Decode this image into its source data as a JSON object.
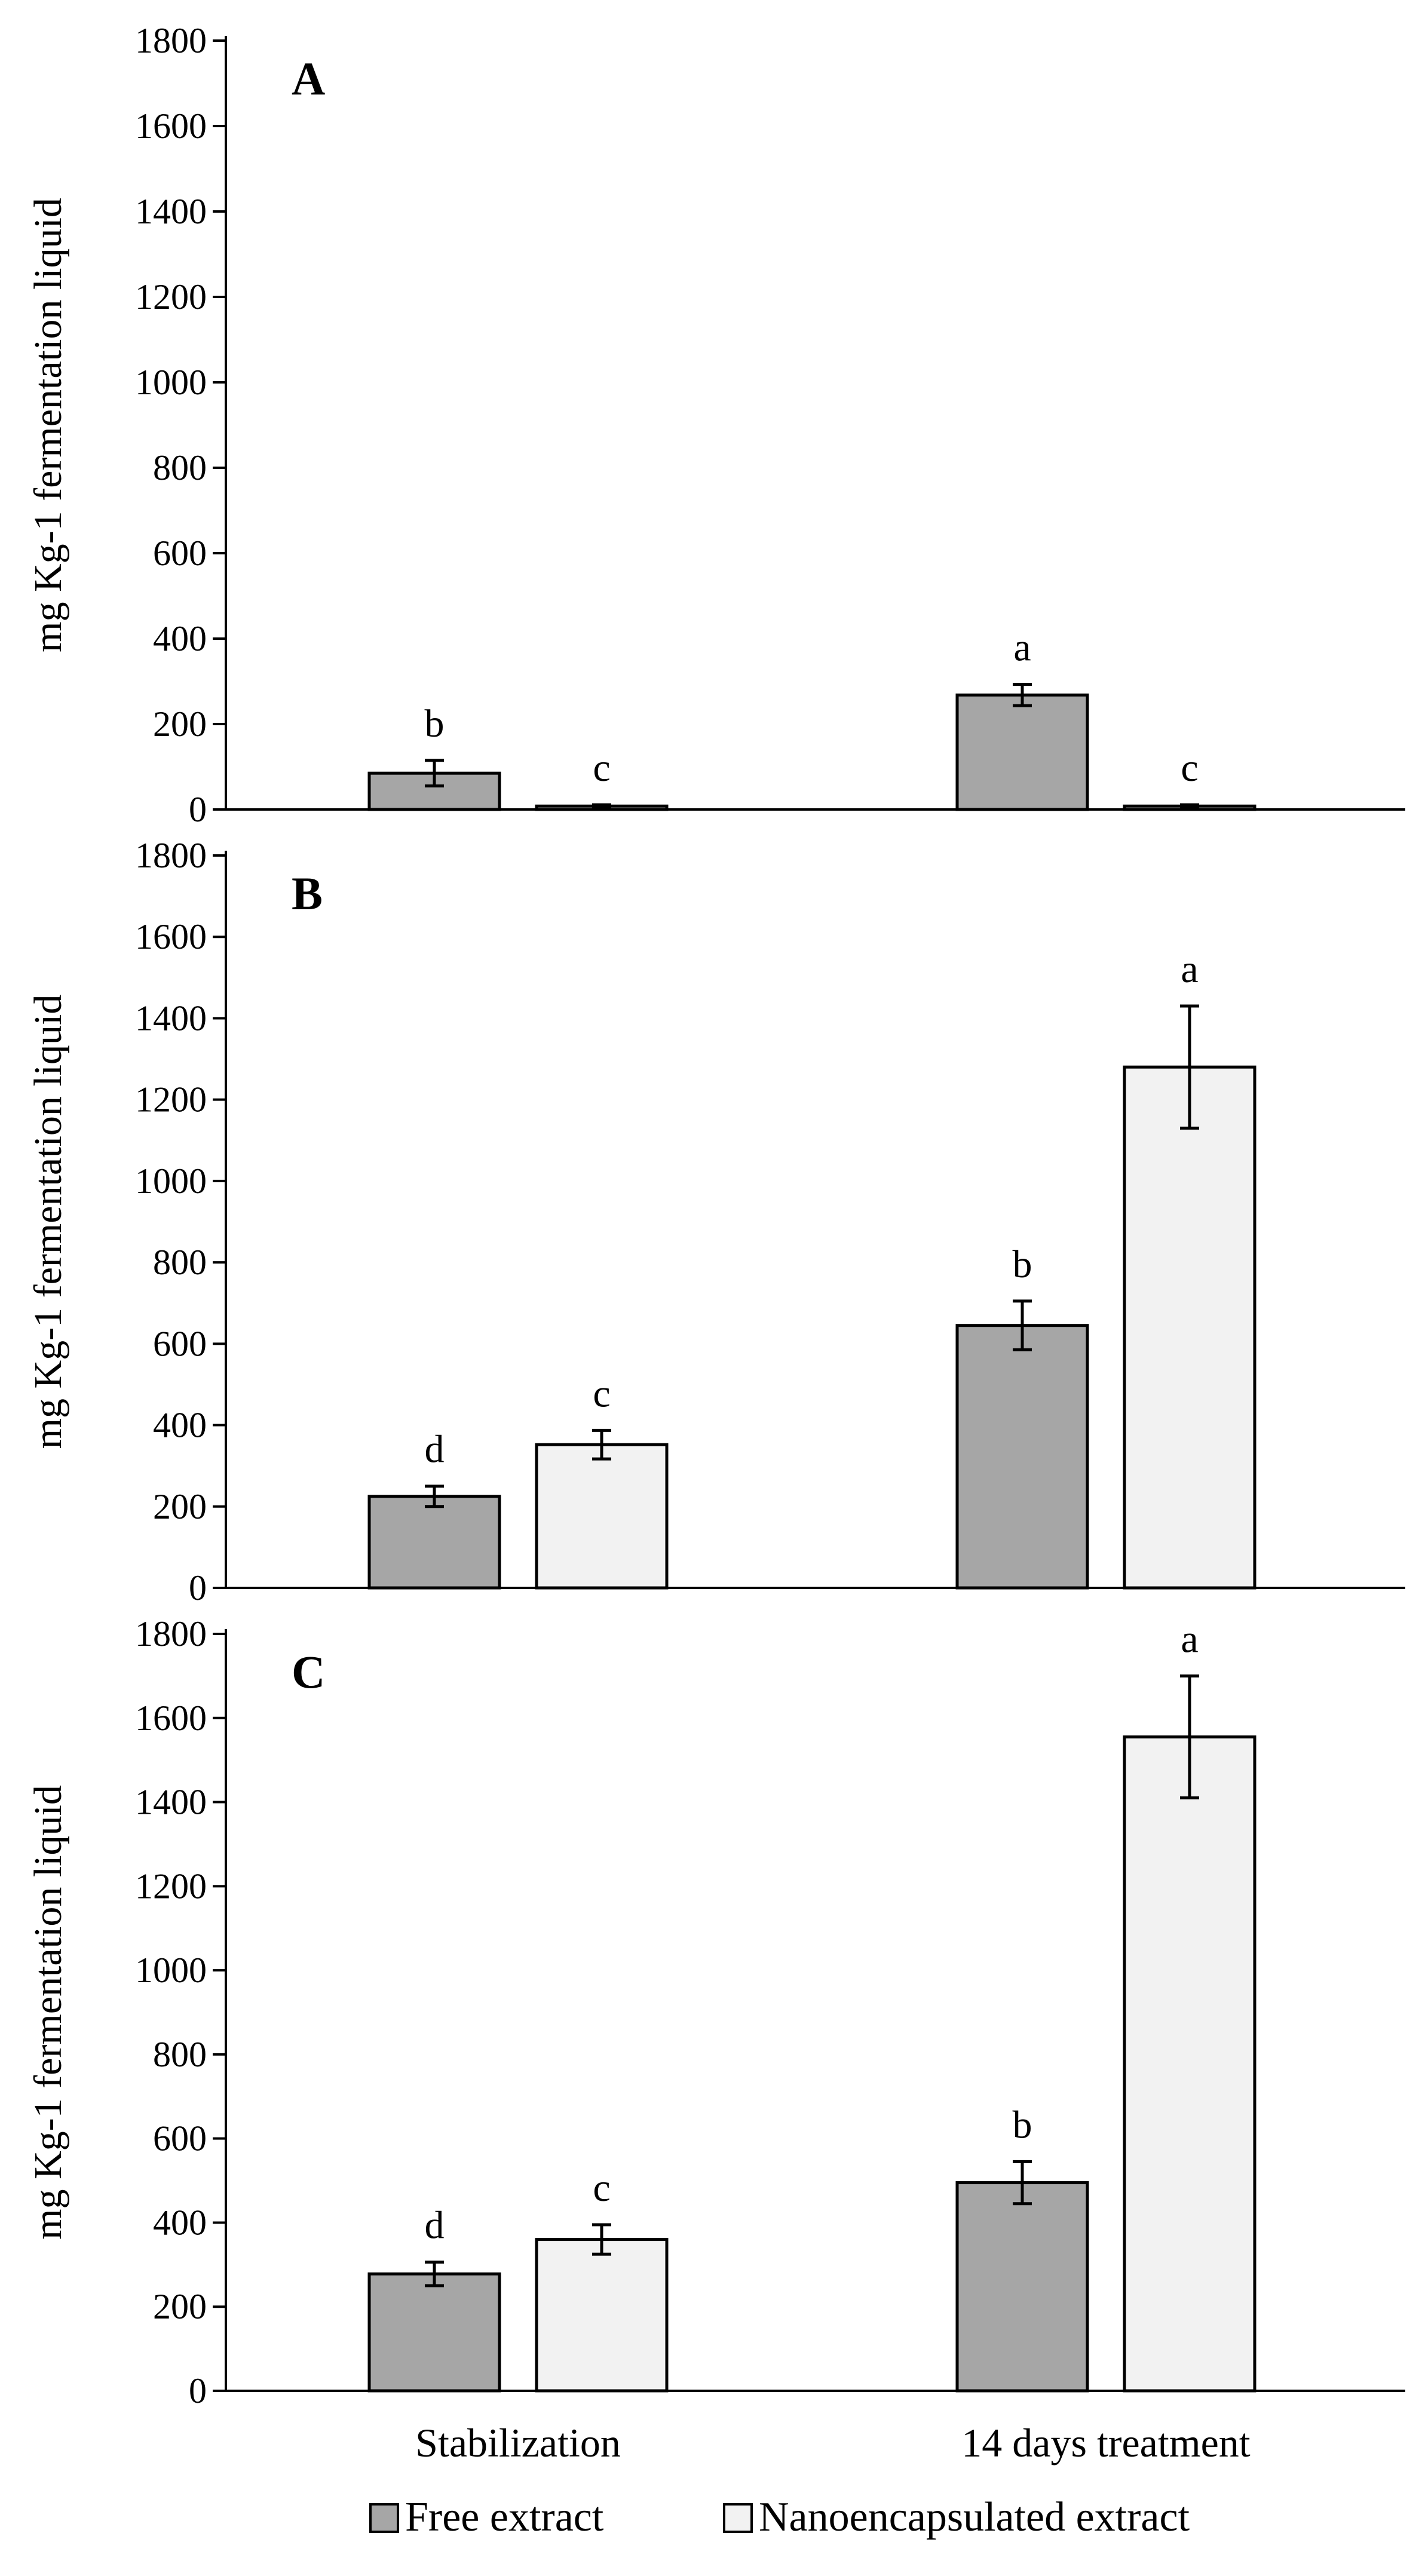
{
  "chart_data": {
    "type": "bar",
    "categories": [
      "Stabilization",
      "14 days treatment"
    ],
    "series_names": [
      "Free extract",
      "Nanoencapsulated extract"
    ],
    "colors": {
      "free": "#a6a6a6",
      "nano": "#f2f2f2",
      "axis": "#000000"
    },
    "yticks": [
      "0",
      "200",
      "400",
      "600",
      "800",
      "1000",
      "1200",
      "1400",
      "1600",
      "1800"
    ],
    "panels": [
      {
        "letter": "A",
        "ylabel": "mg  Kg-1 fermentation liquid",
        "ylim": [
          0,
          1800
        ],
        "series": [
          {
            "name": "Free extract",
            "values": [
              85,
              268
            ],
            "errors": [
              30,
              25
            ],
            "letters": [
              "b",
              "a"
            ]
          },
          {
            "name": "Nanoencapsulated extract",
            "values": [
              8,
              8
            ],
            "errors": [
              3,
              3
            ],
            "letters": [
              "c",
              "c"
            ]
          }
        ]
      },
      {
        "letter": "B",
        "ylabel": "mg  Kg-1 fermentation liquid",
        "ylim": [
          0,
          1800
        ],
        "series": [
          {
            "name": "Free extract",
            "values": [
              225,
              645
            ],
            "errors": [
              25,
              60
            ],
            "letters": [
              "d",
              "b"
            ]
          },
          {
            "name": "Nanoencapsulated extract",
            "values": [
              352,
              1280
            ],
            "errors": [
              35,
              150
            ],
            "letters": [
              "c",
              "a"
            ]
          }
        ]
      },
      {
        "letter": "C",
        "ylabel": "mg  Kg-1 fermentation liquid",
        "ylim": [
          0,
          1800
        ],
        "series": [
          {
            "name": "Free extract",
            "values": [
              278,
              495
            ],
            "errors": [
              28,
              50
            ],
            "letters": [
              "d",
              "b"
            ]
          },
          {
            "name": "Nanoencapsulated extract",
            "values": [
              360,
              1555
            ],
            "errors": [
              35,
              145
            ],
            "letters": [
              "c",
              "a"
            ]
          }
        ]
      }
    ]
  }
}
